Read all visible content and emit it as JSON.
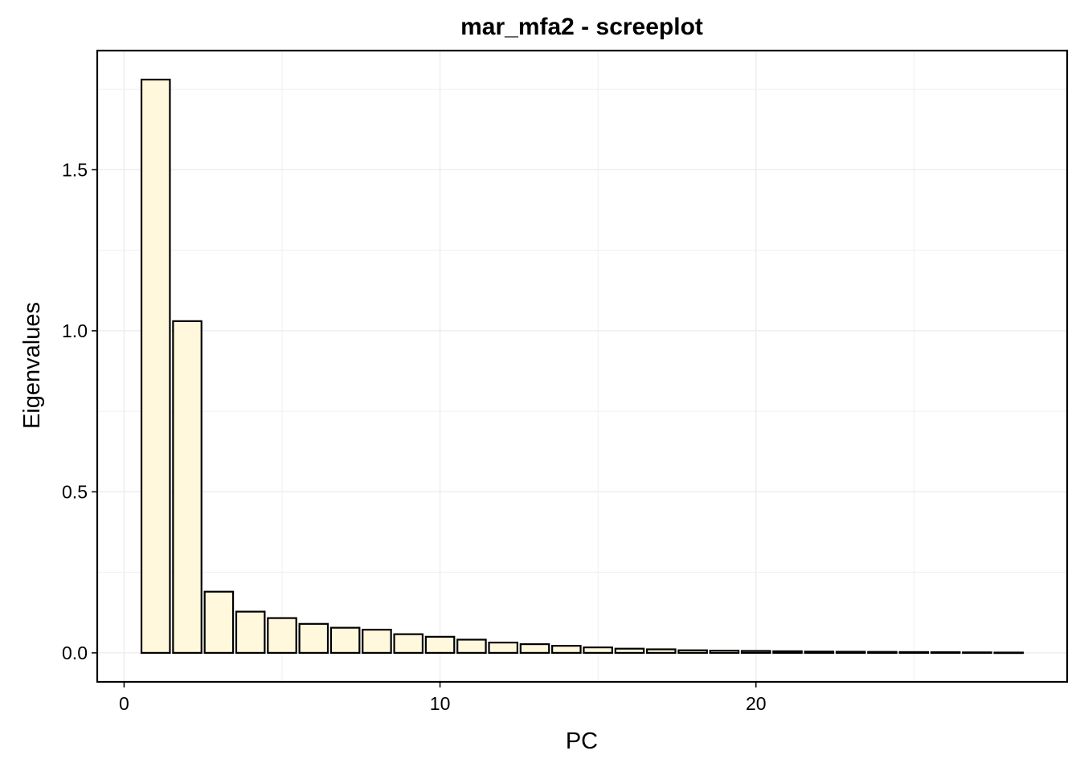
{
  "chart_data": {
    "type": "bar",
    "title": "mar_mfa2 - screeplot",
    "xlabel": "PC",
    "ylabel": "Eigenvalues",
    "x": [
      1,
      2,
      3,
      4,
      5,
      6,
      7,
      8,
      9,
      10,
      11,
      12,
      13,
      14,
      15,
      16,
      17,
      18,
      19,
      20,
      21,
      22,
      23,
      24,
      25,
      26,
      27,
      28
    ],
    "values": [
      1.78,
      1.03,
      0.19,
      0.128,
      0.108,
      0.09,
      0.078,
      0.072,
      0.058,
      0.05,
      0.041,
      0.032,
      0.027,
      0.022,
      0.017,
      0.013,
      0.011,
      0.008,
      0.007,
      0.006,
      0.005,
      0.004,
      0.0035,
      0.003,
      0.0025,
      0.002,
      0.0015,
      0.001
    ],
    "xlim": [
      -0.85,
      29.85
    ],
    "ylim": [
      -0.09,
      1.87
    ],
    "x_ticks": [
      0,
      10,
      20
    ],
    "x_tick_labels": [
      "0",
      "10",
      "20"
    ],
    "y_ticks": [
      0,
      0.5,
      1,
      1.5
    ],
    "y_tick_labels": [
      "0.0",
      "0.5",
      "1.0",
      "1.5"
    ],
    "grid": true,
    "colors": {
      "bar_fill": "#FFF8DC",
      "bar_stroke": "#000000",
      "grid": "#EBEBEB",
      "background": "#FFFFFF"
    }
  }
}
